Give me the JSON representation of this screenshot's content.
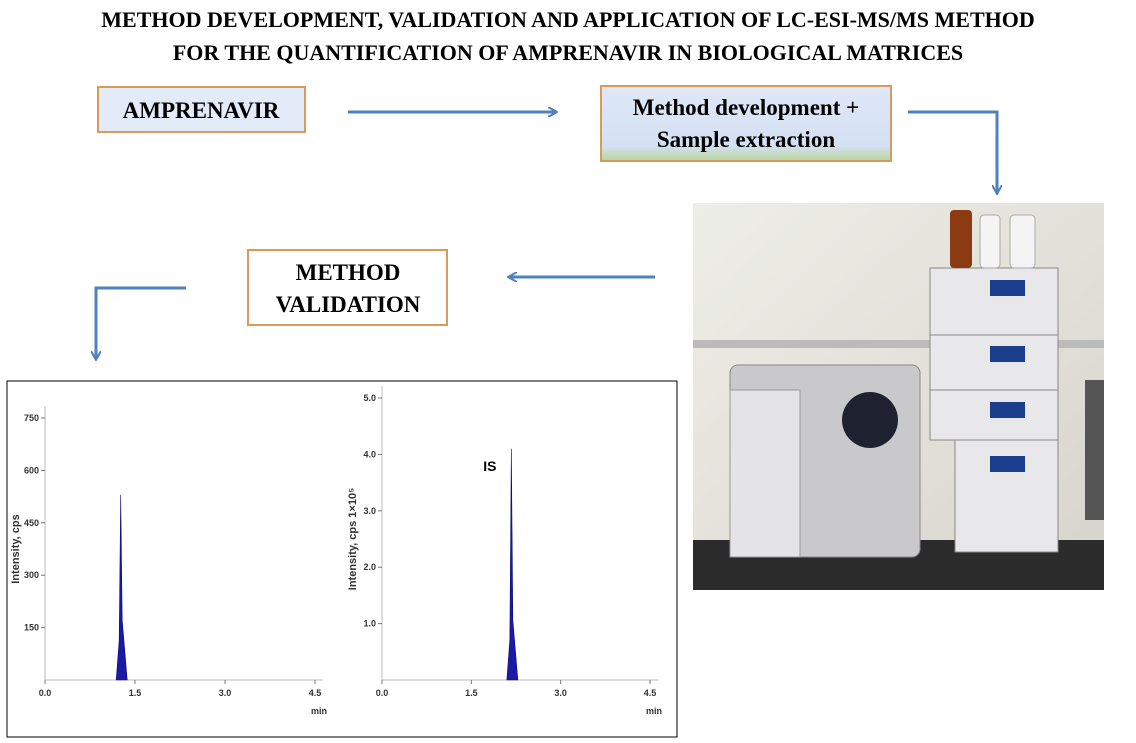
{
  "title_lines": [
    "METHOD DEVELOPMENT, VALIDATION AND APPLICATION OF LC-ESI-MS/MS METHOD",
    "FOR THE  QUANTIFICATION OF AMPRENAVIR IN BIOLOGICAL MATRICES"
  ],
  "nodes": [
    {
      "label": [
        "AMPRENAVIR"
      ]
    },
    {
      "label": [
        "Method development +",
        "Sample extraction"
      ]
    },
    {
      "label": [
        "METHOD",
        "VALIDATION"
      ]
    }
  ],
  "chromatograms": [
    {
      "ylabel": "Intensity, cps",
      "xlabel": "min",
      "xlim": [
        0,
        4.5
      ],
      "ylim": [
        0,
        750
      ],
      "xticks": [
        {
          "value": 0,
          "label": "0.0"
        },
        {
          "value": 1.5,
          "label": "1.5"
        },
        {
          "value": 3,
          "label": "3.0"
        },
        {
          "value": 4.5,
          "label": "4.5"
        }
      ],
      "yticks": [
        150,
        300,
        450,
        600,
        750
      ],
      "peak": {
        "x": 1.27,
        "height": 530
      }
    },
    {
      "ylabel": "Intensity, cps 1×10⁵",
      "xlabel": "min",
      "annotation": "IS",
      "xlim": [
        0,
        4.5
      ],
      "ylim": [
        0,
        5
      ],
      "xticks": [
        {
          "value": 0,
          "label": "0.0"
        },
        {
          "value": 1.5,
          "label": "1.5"
        },
        {
          "value": 3,
          "label": "3.0"
        },
        {
          "value": 4.5,
          "label": "4.5"
        }
      ],
      "yticks": [
        {
          "value": 1,
          "label": "1.0"
        },
        {
          "value": 2,
          "label": "2.0"
        },
        {
          "value": 3,
          "label": "3.0"
        },
        {
          "value": 4,
          "label": "4.0"
        },
        {
          "value": 5,
          "label": "5.0"
        }
      ],
      "peak": {
        "x": 2.18,
        "height": 4.1
      }
    }
  ]
}
